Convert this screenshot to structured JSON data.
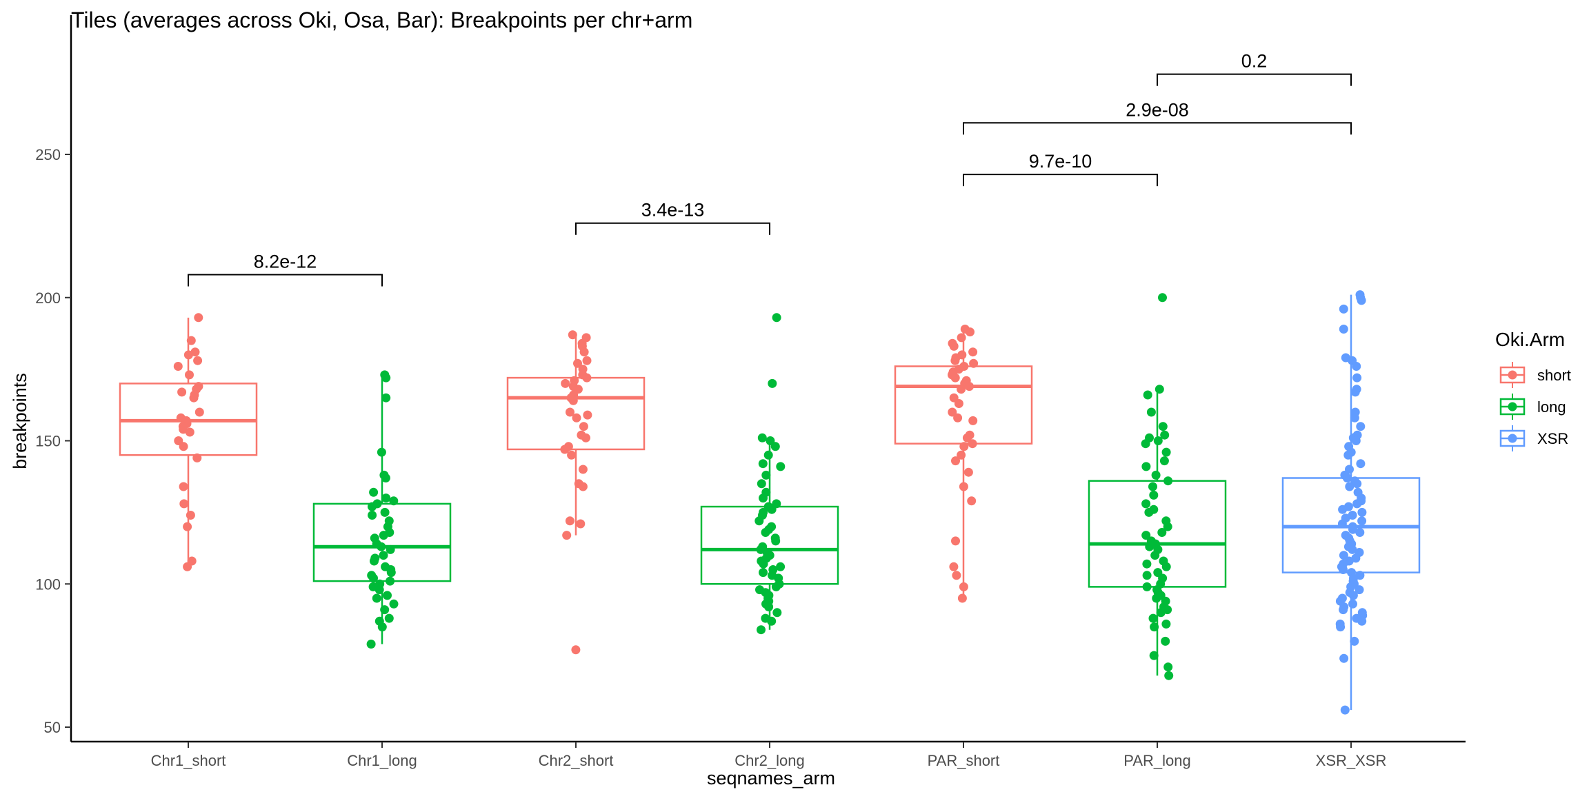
{
  "chart_data": {
    "type": "box",
    "title": "Tiles (averages across Oki, Osa, Bar): Breakpoints per chr+arm",
    "xlabel": "seqnames_arm",
    "ylabel": "breakpoints",
    "ylim": [
      45,
      280
    ],
    "yticks": [
      50,
      100,
      150,
      200,
      250
    ],
    "grid": false,
    "legend": {
      "title": "Oki.Arm",
      "placement": "right",
      "entries": [
        {
          "name": "short",
          "color": "#F8766D"
        },
        {
          "name": "long",
          "color": "#00BA38"
        },
        {
          "name": "XSR",
          "color": "#619CFF"
        }
      ]
    },
    "categories": [
      "Chr1_short",
      "Chr1_long",
      "Chr2_short",
      "Chr2_long",
      "PAR_short",
      "PAR_long",
      "XSR_XSR"
    ],
    "boxes": [
      {
        "category": "Chr1_short",
        "group": "short",
        "whisker_low": 106,
        "q1": 145,
        "median": 157,
        "q3": 170,
        "whisker_high": 193,
        "points": [
          193,
          185,
          181,
          180,
          178,
          176,
          173,
          169,
          168,
          167,
          166,
          165,
          160,
          158,
          157,
          156,
          155,
          154,
          153,
          150,
          148,
          144,
          134,
          128,
          124,
          120,
          108,
          106
        ]
      },
      {
        "category": "Chr1_long",
        "group": "long",
        "whisker_low": 79,
        "q1": 101,
        "median": 113,
        "q3": 128,
        "whisker_high": 173,
        "points": [
          173,
          172,
          165,
          146,
          138,
          137,
          132,
          130,
          129,
          128,
          127,
          125,
          124,
          122,
          120,
          118,
          117,
          116,
          114,
          113,
          112,
          110,
          109,
          108,
          106,
          105,
          104,
          103,
          102,
          101,
          100,
          99,
          98,
          96,
          95,
          93,
          91,
          88,
          87,
          85,
          79
        ]
      },
      {
        "category": "Chr2_short",
        "group": "short",
        "whisker_low": 117,
        "q1": 147,
        "median": 165,
        "q3": 172,
        "whisker_high": 187,
        "points": [
          187,
          186,
          184,
          183,
          181,
          178,
          177,
          175,
          173,
          172,
          171,
          170,
          169,
          168,
          166,
          165,
          164,
          160,
          159,
          158,
          155,
          152,
          151,
          148,
          147,
          145,
          140,
          135,
          134,
          122,
          121,
          117,
          77
        ]
      },
      {
        "category": "Chr2_long",
        "group": "long",
        "whisker_low": 84,
        "q1": 100,
        "median": 112,
        "q3": 127,
        "whisker_high": 151,
        "points": [
          193,
          170,
          151,
          150,
          148,
          145,
          142,
          141,
          138,
          135,
          132,
          130,
          128,
          127,
          126,
          125,
          124,
          122,
          120,
          119,
          118,
          116,
          115,
          113,
          112,
          111,
          110,
          109,
          108,
          107,
          106,
          105,
          104,
          103,
          102,
          100,
          99,
          98,
          97,
          96,
          95,
          94,
          93,
          92,
          90,
          88,
          87,
          84
        ]
      },
      {
        "category": "PAR_short",
        "group": "short",
        "whisker_low": 95,
        "q1": 149,
        "median": 169,
        "q3": 176,
        "whisker_high": 189,
        "points": [
          189,
          188,
          186,
          184,
          183,
          181,
          180,
          179,
          178,
          177,
          176,
          175,
          174,
          173,
          172,
          171,
          170,
          169,
          168,
          165,
          163,
          160,
          158,
          157,
          152,
          151,
          149,
          148,
          145,
          143,
          139,
          134,
          129,
          115,
          106,
          103,
          99,
          95
        ]
      },
      {
        "category": "PAR_long",
        "group": "long",
        "whisker_low": 68,
        "q1": 99,
        "median": 114,
        "q3": 136,
        "whisker_high": 168,
        "points": [
          200,
          168,
          166,
          160,
          155,
          152,
          151,
          150,
          149,
          146,
          143,
          141,
          138,
          136,
          134,
          131,
          128,
          126,
          125,
          122,
          120,
          118,
          117,
          115,
          114,
          113,
          112,
          110,
          108,
          107,
          106,
          104,
          103,
          102,
          100,
          99,
          98,
          97,
          96,
          95,
          94,
          92,
          91,
          90,
          88,
          86,
          85,
          80,
          75,
          71,
          68
        ]
      },
      {
        "category": "XSR_XSR",
        "group": "XSR",
        "whisker_low": 56,
        "q1": 104,
        "median": 120,
        "q3": 137,
        "whisker_high": 201,
        "points": [
          201,
          200,
          199,
          196,
          189,
          179,
          178,
          176,
          172,
          168,
          167,
          160,
          158,
          155,
          152,
          151,
          150,
          148,
          146,
          145,
          142,
          140,
          138,
          137,
          136,
          135,
          134,
          132,
          130,
          129,
          128,
          127,
          126,
          125,
          124,
          123,
          122,
          121,
          120,
          119,
          118,
          117,
          116,
          115,
          114,
          113,
          112,
          111,
          110,
          109,
          108,
          107,
          106,
          105,
          104,
          103,
          102,
          101,
          100,
          99,
          98,
          97,
          96,
          95,
          94,
          93,
          92,
          91,
          90,
          89,
          88,
          87,
          86,
          85,
          80,
          74,
          56
        ]
      }
    ],
    "comparisons": [
      {
        "from": "Chr1_short",
        "to": "Chr1_long",
        "label": "8.2e-12",
        "y": 208
      },
      {
        "from": "Chr2_short",
        "to": "Chr2_long",
        "label": "3.4e-13",
        "y": 226
      },
      {
        "from": "PAR_short",
        "to": "PAR_long",
        "label": "9.7e-10",
        "y": 243
      },
      {
        "from": "PAR_short",
        "to": "XSR_XSR",
        "label": "2.9e-08",
        "y": 261
      },
      {
        "from": "PAR_long",
        "to": "XSR_XSR",
        "label": "0.2",
        "y": 278
      }
    ]
  }
}
